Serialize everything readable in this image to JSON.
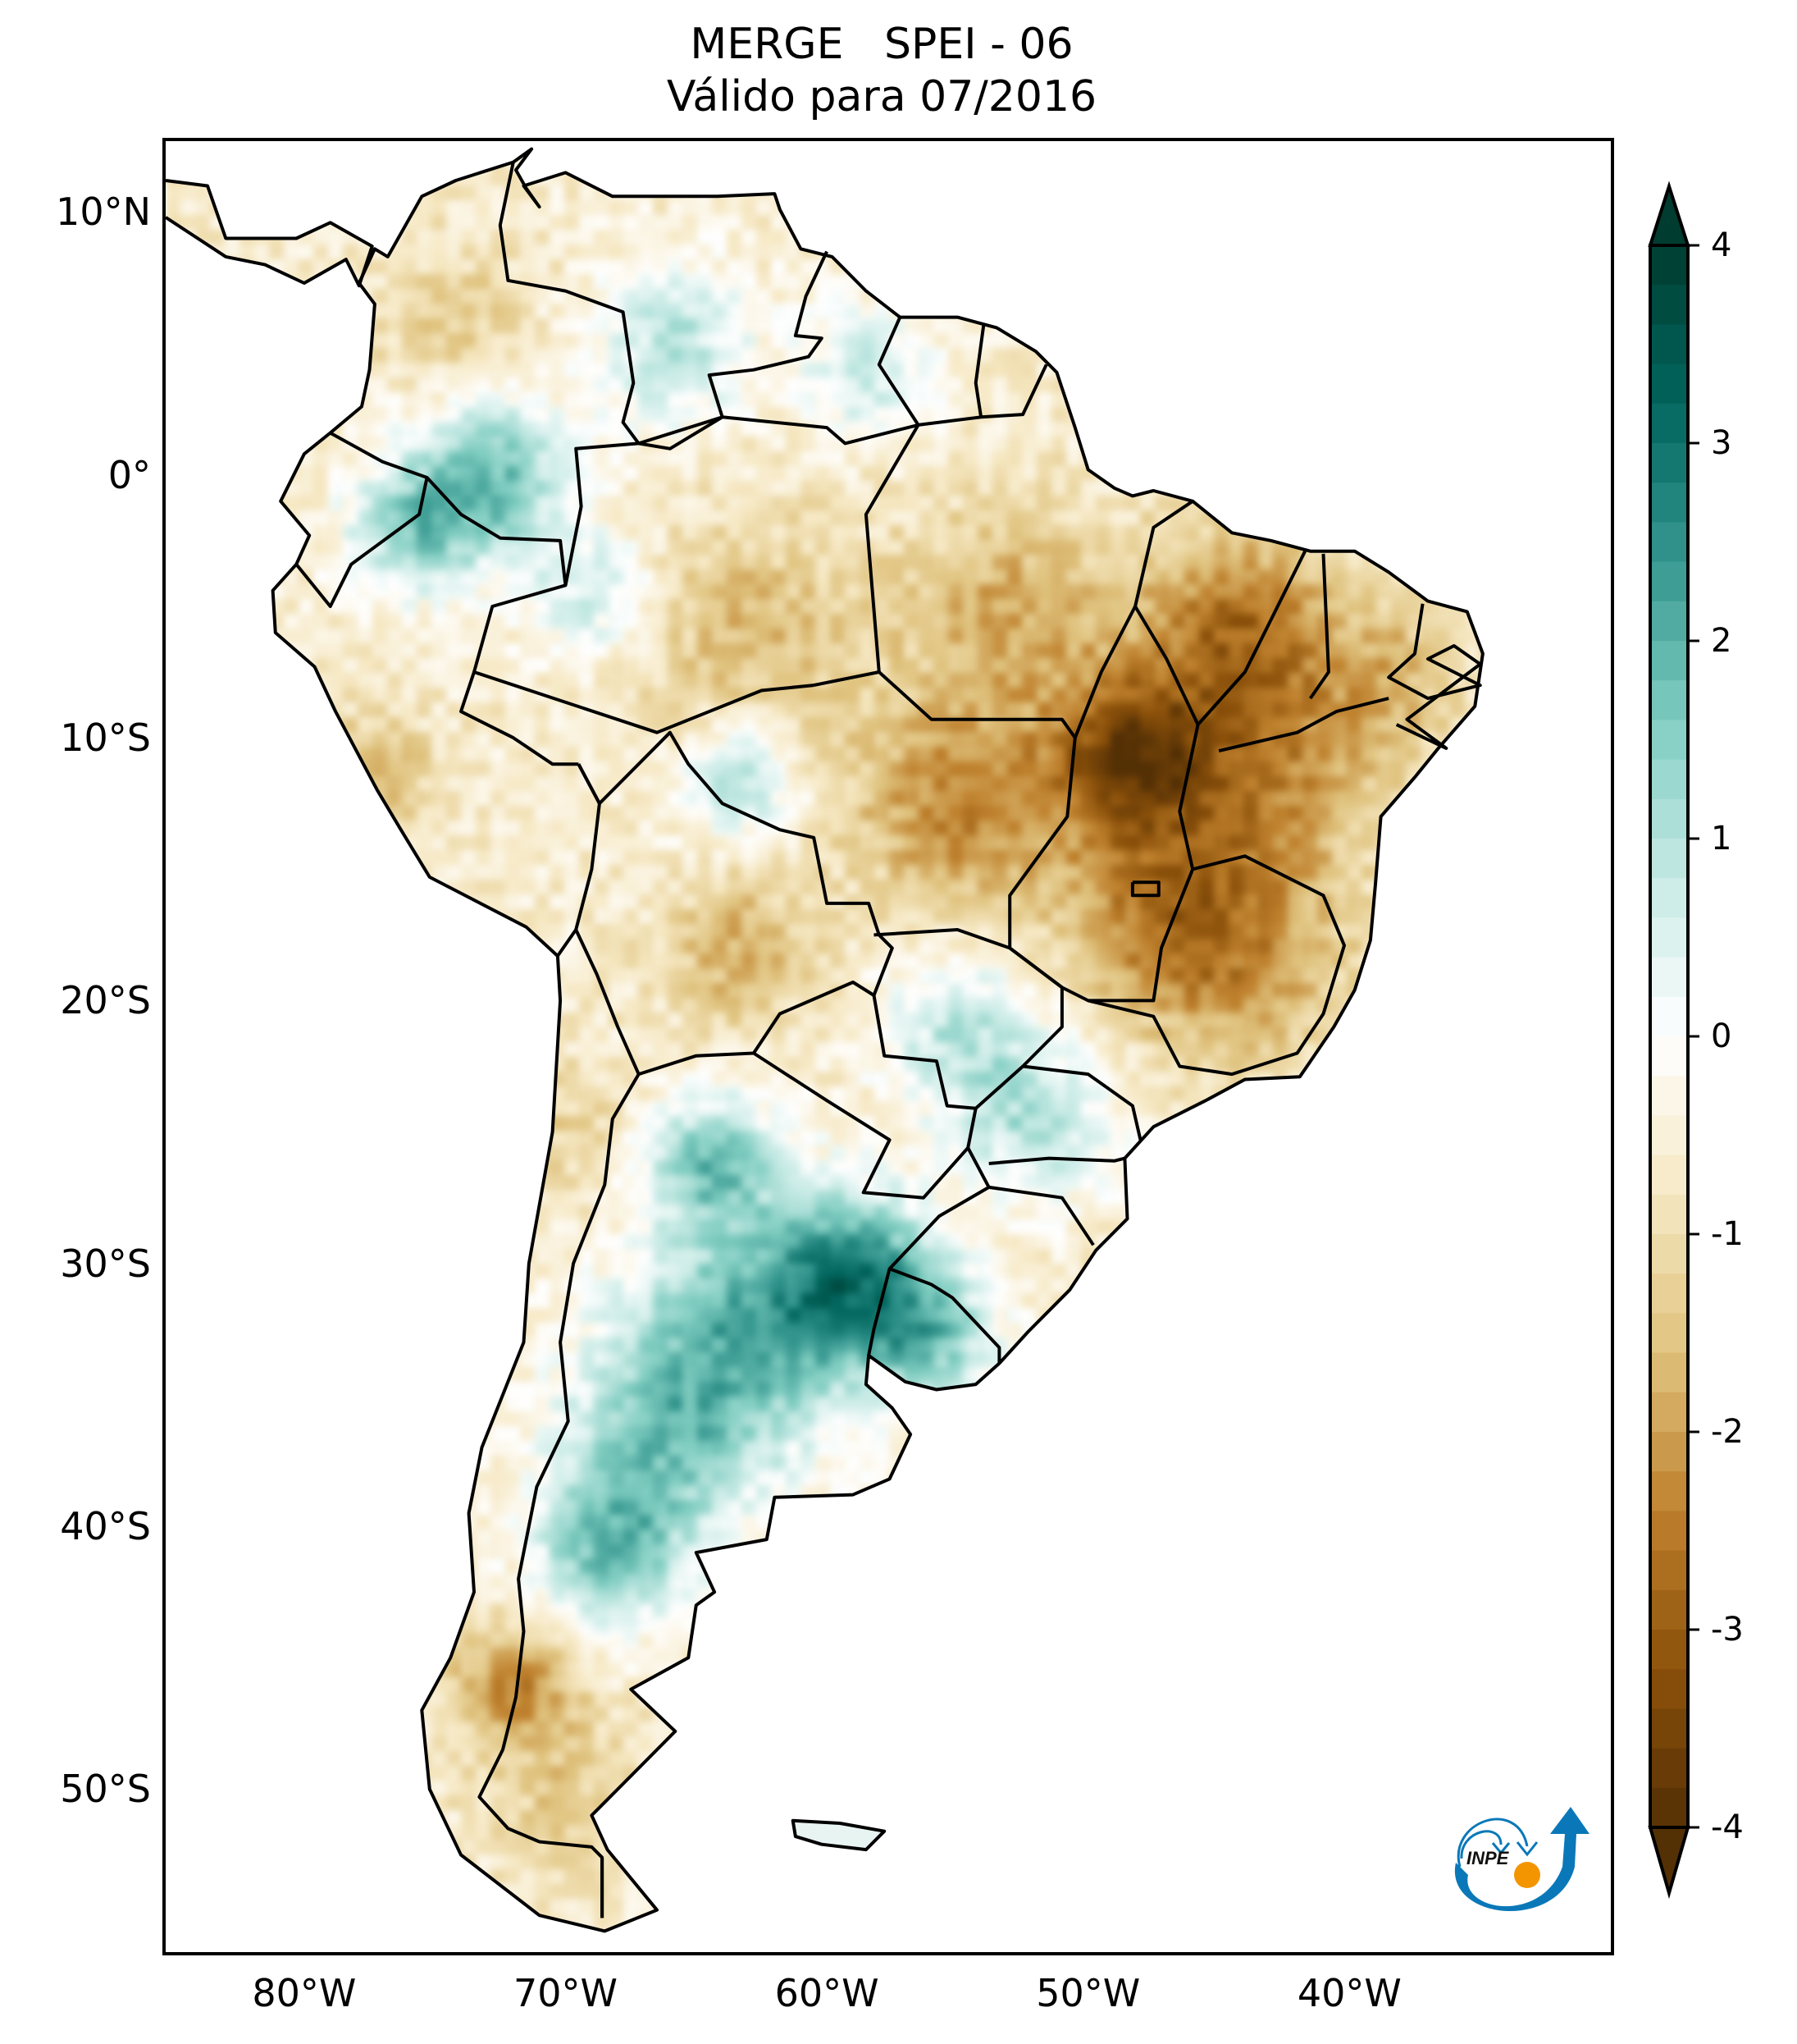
{
  "title": {
    "line1": "MERGE   SPEI - 06",
    "line2": "Válido para 07/2016"
  },
  "map": {
    "projection": "PlateCarree",
    "lon_range": [
      -85.3,
      -30.0
    ],
    "lat_range": [
      -56.2,
      12.7
    ],
    "lat_ticks": [
      {
        "value": 10,
        "label": "10°N"
      },
      {
        "value": 0,
        "label": "0°"
      },
      {
        "value": -10,
        "label": "10°S"
      },
      {
        "value": -20,
        "label": "20°S"
      },
      {
        "value": -30,
        "label": "30°S"
      },
      {
        "value": -40,
        "label": "40°S"
      },
      {
        "value": -50,
        "label": "50°S"
      }
    ],
    "lon_ticks": [
      {
        "value": -80,
        "label": "80°W"
      },
      {
        "value": -70,
        "label": "70°W"
      },
      {
        "value": -60,
        "label": "60°W"
      },
      {
        "value": -50,
        "label": "50°W"
      },
      {
        "value": -40,
        "label": "40°W"
      }
    ],
    "field_background_spei": -0.6,
    "field_anomalies": [
      {
        "name": "central-brazil-tocantins-dry",
        "lon": -48.5,
        "lat": -10.5,
        "spei": -3.0,
        "r": 3.0
      },
      {
        "name": "bahia-dry",
        "lon": -43.5,
        "lat": -11.0,
        "spei": -2.0,
        "r": 4.5
      },
      {
        "name": "piaui-maranhao-dry",
        "lon": -44.5,
        "lat": -5.5,
        "spei": -2.2,
        "r": 3.5
      },
      {
        "name": "mato-grosso-dry",
        "lon": -55.0,
        "lat": -12.5,
        "spei": -2.1,
        "r": 4.0
      },
      {
        "name": "goias-minas-dry",
        "lon": -47.5,
        "lat": -16.5,
        "spei": -1.9,
        "r": 4.0
      },
      {
        "name": "minas-gerais-dry",
        "lon": -44.0,
        "lat": -18.5,
        "spei": -1.6,
        "r": 4.0
      },
      {
        "name": "para-dry",
        "lon": -53.0,
        "lat": -5.0,
        "spei": -1.6,
        "r": 4.0
      },
      {
        "name": "amazonas-dry",
        "lon": -63.0,
        "lat": -6.0,
        "spei": -1.4,
        "r": 4.5
      },
      {
        "name": "northeast-coast-dry",
        "lon": -38.5,
        "lat": -7.5,
        "spei": -1.3,
        "r": 3.0
      },
      {
        "name": "colombia-north-dry",
        "lon": -74.5,
        "lat": 6.0,
        "spei": -1.1,
        "r": 3.0
      },
      {
        "name": "bolivia-east-dry",
        "lon": -63.5,
        "lat": -18.0,
        "spei": -1.6,
        "r": 2.8
      },
      {
        "name": "peru-coast-dry",
        "lon": -77.5,
        "lat": -11.5,
        "spei": -1.5,
        "r": 2.5
      },
      {
        "name": "chile-north-dry",
        "lon": -70.5,
        "lat": -25.0,
        "spei": -1.0,
        "r": 3.0
      },
      {
        "name": "patagonia-west-dry",
        "lon": -72.0,
        "lat": -46.0,
        "spei": -2.0,
        "r": 2.5
      },
      {
        "name": "patagonia-south-dry",
        "lon": -70.0,
        "lat": -50.5,
        "spei": -1.1,
        "r": 3.0
      },
      {
        "name": "argentina-ne-wet",
        "lon": -59.0,
        "lat": -30.5,
        "spei": 2.6,
        "r": 3.2
      },
      {
        "name": "argentina-central-wet",
        "lon": -63.5,
        "lat": -32.5,
        "spei": 1.9,
        "r": 4.5
      },
      {
        "name": "uruguay-wet",
        "lon": -56.0,
        "lat": -32.8,
        "spei": 1.4,
        "r": 2.5
      },
      {
        "name": "chaco-wet",
        "lon": -64.5,
        "lat": -26.0,
        "spei": 1.8,
        "r": 2.5
      },
      {
        "name": "pampas-wet",
        "lon": -66.5,
        "lat": -37.0,
        "spei": 1.4,
        "r": 4.0
      },
      {
        "name": "north-patagonia-wet",
        "lon": -68.5,
        "lat": -41.0,
        "spei": 1.7,
        "r": 2.8
      },
      {
        "name": "parana-wet",
        "lon": -52.0,
        "lat": -24.5,
        "spei": 1.2,
        "r": 3.0
      },
      {
        "name": "mato-grosso-sul-wet",
        "lon": -55.0,
        "lat": -21.0,
        "spei": 1.1,
        "r": 3.0
      },
      {
        "name": "colombia-south-wet",
        "lon": -73.0,
        "lat": 0.0,
        "spei": 2.0,
        "r": 3.0
      },
      {
        "name": "ecuador-amazon-wet",
        "lon": -76.0,
        "lat": -2.0,
        "spei": 1.4,
        "r": 2.5
      },
      {
        "name": "venezuela-south-wet",
        "lon": -66.0,
        "lat": 5.0,
        "spei": 1.2,
        "r": 3.0
      },
      {
        "name": "guyana-wet",
        "lon": -58.5,
        "lat": 4.0,
        "spei": 1.0,
        "r": 2.5
      },
      {
        "name": "rondonia-wet",
        "lon": -63.5,
        "lat": -11.5,
        "spei": 1.4,
        "r": 2.2
      },
      {
        "name": "west-amazon-wet",
        "lon": -69.0,
        "lat": -4.5,
        "spei": 0.9,
        "r": 2.5
      }
    ],
    "logo_text": "INPE"
  },
  "colorbar": {
    "cmap": "BrBG",
    "vmin": -4,
    "vmax": 4,
    "extend": "both",
    "ticks": [
      {
        "value": 4,
        "label": "4"
      },
      {
        "value": 3,
        "label": "3"
      },
      {
        "value": 2,
        "label": "2"
      },
      {
        "value": 1,
        "label": "1"
      },
      {
        "value": 0,
        "label": "0"
      },
      {
        "value": -1,
        "label": "-1"
      },
      {
        "value": -2,
        "label": "-2"
      },
      {
        "value": -3,
        "label": "-3"
      },
      {
        "value": -4,
        "label": "-4"
      }
    ],
    "colors": {
      "dry_extreme": "#543005",
      "dry_strong": "#8c510a",
      "dry_moderate": "#bf812d",
      "dry_mild": "#dfc27d",
      "dry_light": "#f6e8c3",
      "neutral": "#ffffff",
      "wet_light": "#c7eae5",
      "wet_mild": "#80cdc1",
      "wet_moderate": "#35978f",
      "wet_strong": "#01665e",
      "wet_extreme": "#003c30"
    }
  },
  "chart_data": {
    "type": "heatmap",
    "title": "MERGE   SPEI - 06",
    "subtitle": "Válido para 07/2016",
    "xlabel": "",
    "ylabel": "",
    "x_ticks": [
      "80°W",
      "70°W",
      "60°W",
      "50°W",
      "40°W"
    ],
    "y_ticks": [
      "10°N",
      "0°",
      "10°S",
      "20°S",
      "30°S",
      "40°S",
      "50°S"
    ],
    "xlim": [
      -85.3,
      -30.0
    ],
    "ylim": [
      -56.2,
      12.7
    ],
    "colorbar_range": [
      -4,
      4
    ],
    "colorbar_ticks": [
      -4,
      -3,
      -2,
      -1,
      0,
      1,
      2,
      3,
      4
    ],
    "legend": "colorbar-right",
    "grid": false
  }
}
